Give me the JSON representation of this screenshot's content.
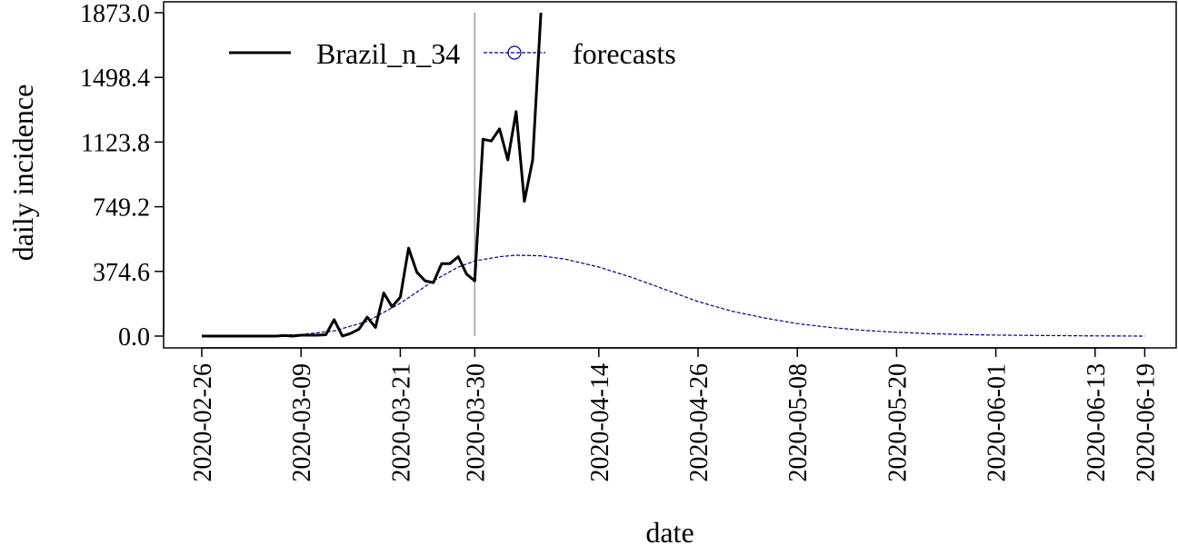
{
  "chart_data": {
    "type": "line",
    "title": "",
    "xlabel": "date",
    "ylabel": "daily incidence",
    "ylim": [
      -30,
      1873
    ],
    "y_ticks": [
      "0.0",
      "374.6",
      "749.2",
      "1123.8",
      "1498.4",
      "1873.0"
    ],
    "x_ticks": [
      "2020-02-26",
      "2020-03-09",
      "2020-03-21",
      "2020-03-30",
      "2020-04-14",
      "2020-04-26",
      "2020-05-08",
      "2020-05-20",
      "2020-06-01",
      "2020-06-13",
      "2020-06-19"
    ],
    "forecast_start": "2020-03-30",
    "legend": {
      "position": "top-left",
      "entries": [
        "Brazil_n_34",
        "forecasts"
      ]
    },
    "colors": {
      "observed": "#000000",
      "forecast": "#00008b",
      "forecast_start_line": "#b0b0b0"
    },
    "series": [
      {
        "name": "Brazil_n_34",
        "style": "solid",
        "points": [
          [
            "2020-02-26",
            0
          ],
          [
            "2020-02-27",
            0
          ],
          [
            "2020-02-28",
            0
          ],
          [
            "2020-02-29",
            0
          ],
          [
            "2020-03-01",
            0
          ],
          [
            "2020-03-02",
            0
          ],
          [
            "2020-03-03",
            0
          ],
          [
            "2020-03-04",
            0
          ],
          [
            "2020-03-05",
            0
          ],
          [
            "2020-03-06",
            0
          ],
          [
            "2020-03-07",
            3
          ],
          [
            "2020-03-08",
            0
          ],
          [
            "2020-03-09",
            5
          ],
          [
            "2020-03-10",
            5
          ],
          [
            "2020-03-11",
            5
          ],
          [
            "2020-03-12",
            8
          ],
          [
            "2020-03-13",
            95
          ],
          [
            "2020-03-14",
            0
          ],
          [
            "2020-03-15",
            15
          ],
          [
            "2020-03-16",
            40
          ],
          [
            "2020-03-17",
            110
          ],
          [
            "2020-03-18",
            50
          ],
          [
            "2020-03-19",
            250
          ],
          [
            "2020-03-20",
            170
          ],
          [
            "2020-03-21",
            225
          ],
          [
            "2020-03-22",
            510
          ],
          [
            "2020-03-23",
            370
          ],
          [
            "2020-03-24",
            320
          ],
          [
            "2020-03-25",
            310
          ],
          [
            "2020-03-26",
            420
          ],
          [
            "2020-03-27",
            420
          ],
          [
            "2020-03-28",
            460
          ],
          [
            "2020-03-29",
            360
          ],
          [
            "2020-03-30",
            320
          ],
          [
            "2020-03-31",
            1140
          ],
          [
            "2020-04-01",
            1130
          ],
          [
            "2020-04-02",
            1200
          ],
          [
            "2020-04-03",
            1020
          ],
          [
            "2020-04-04",
            1300
          ],
          [
            "2020-04-05",
            780
          ],
          [
            "2020-04-06",
            1020
          ],
          [
            "2020-04-07",
            1873
          ]
        ]
      },
      {
        "name": "forecasts",
        "style": "dashed",
        "points": [
          [
            "2020-02-26",
            0
          ],
          [
            "2020-03-02",
            1
          ],
          [
            "2020-03-06",
            4
          ],
          [
            "2020-03-09",
            9
          ],
          [
            "2020-03-13",
            30
          ],
          [
            "2020-03-17",
            85
          ],
          [
            "2020-03-21",
            190
          ],
          [
            "2020-03-25",
            320
          ],
          [
            "2020-03-28",
            400
          ],
          [
            "2020-03-30",
            435
          ],
          [
            "2020-04-02",
            460
          ],
          [
            "2020-04-04",
            468
          ],
          [
            "2020-04-07",
            465
          ],
          [
            "2020-04-10",
            445
          ],
          [
            "2020-04-14",
            400
          ],
          [
            "2020-04-18",
            340
          ],
          [
            "2020-04-22",
            270
          ],
          [
            "2020-04-26",
            200
          ],
          [
            "2020-04-30",
            145
          ],
          [
            "2020-05-04",
            105
          ],
          [
            "2020-05-08",
            72
          ],
          [
            "2020-05-12",
            50
          ],
          [
            "2020-05-16",
            33
          ],
          [
            "2020-05-20",
            22
          ],
          [
            "2020-05-24",
            14
          ],
          [
            "2020-05-28",
            9
          ],
          [
            "2020-06-01",
            6
          ],
          [
            "2020-06-07",
            3
          ],
          [
            "2020-06-13",
            1
          ],
          [
            "2020-06-19",
            0
          ]
        ]
      }
    ]
  }
}
